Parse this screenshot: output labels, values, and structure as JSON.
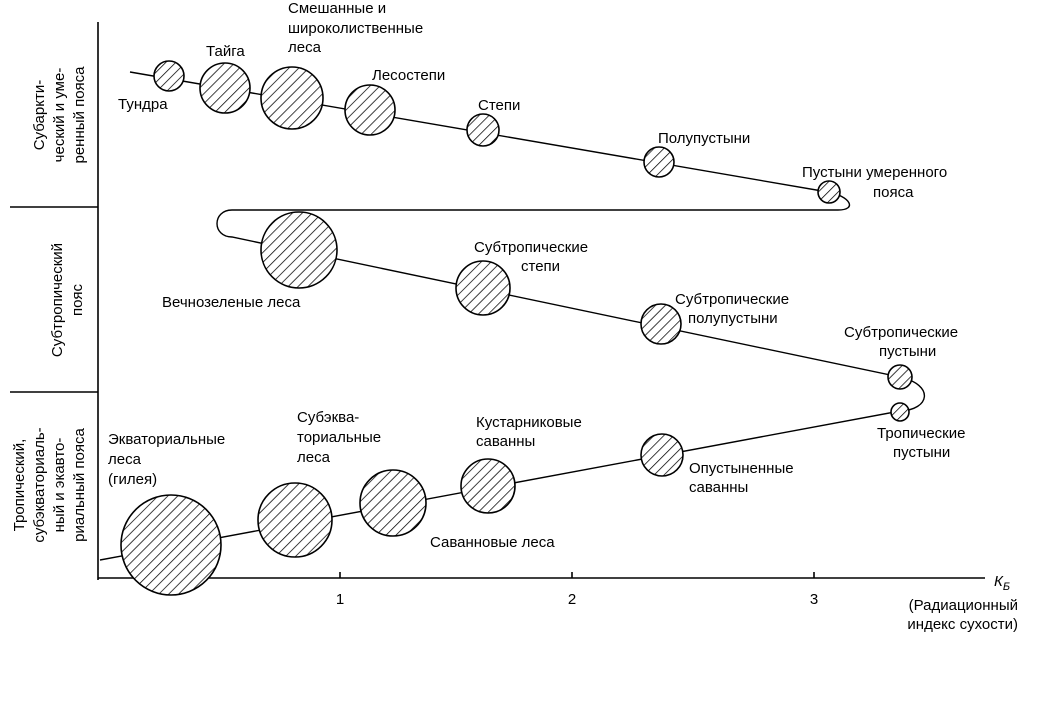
{
  "bands": [
    {
      "id": "subarctic-temperate",
      "lines": [
        "Субаркти-",
        "ческий и уме-",
        "ренный пояса"
      ]
    },
    {
      "id": "subtropical",
      "lines": [
        "Субтропический",
        "пояс"
      ]
    },
    {
      "id": "tropical",
      "lines": [
        "Тропический,",
        "субэкваториаль-",
        "ный и экавто-",
        "риальный пояса"
      ]
    }
  ],
  "axis": {
    "label": "К",
    "label_sub": "Б",
    "caption": [
      "(Радиационный",
      "индекс сухости)"
    ],
    "ticks": [
      "1",
      "2",
      "3"
    ]
  },
  "zones": [
    {
      "id": "tundra",
      "lines": [
        "Тундра"
      ]
    },
    {
      "id": "taiga",
      "lines": [
        "Тайга"
      ]
    },
    {
      "id": "mixed-forests",
      "lines": [
        "Смешанные и",
        "широколиственные",
        "леса"
      ]
    },
    {
      "id": "forest-steppe",
      "lines": [
        "Лесостепи"
      ]
    },
    {
      "id": "steppe",
      "lines": [
        "Степи"
      ]
    },
    {
      "id": "semi-desert",
      "lines": [
        "Полупустыни"
      ]
    },
    {
      "id": "temperate-desert",
      "lines": [
        "Пустыни умеренного",
        "пояса"
      ]
    },
    {
      "id": "evergreen-forests",
      "lines": [
        "Вечнозеленые леса"
      ]
    },
    {
      "id": "subtropical-steppe",
      "lines": [
        "Субтропические",
        "степи"
      ]
    },
    {
      "id": "subtropical-semi-desert",
      "lines": [
        "Субтропические",
        "полупустыни"
      ]
    },
    {
      "id": "subtropical-desert",
      "lines": [
        "Субтропические",
        "пустыни"
      ]
    },
    {
      "id": "tropical-desert",
      "lines": [
        "Тропические",
        "пустыни"
      ]
    },
    {
      "id": "desertified-savanna",
      "lines": [
        "Опустыненные",
        "саванны"
      ]
    },
    {
      "id": "shrub-savanna",
      "lines": [
        "Кустарниковые",
        "саванны"
      ]
    },
    {
      "id": "savanna-forests",
      "lines": [
        "Саванновые леса"
      ]
    },
    {
      "id": "subequatorial-forests",
      "lines": [
        "Субэква-",
        "ториальные",
        "леса"
      ]
    },
    {
      "id": "equatorial-forests",
      "lines": [
        "Экваториальные",
        "леса",
        "(гилея)"
      ]
    }
  ]
}
